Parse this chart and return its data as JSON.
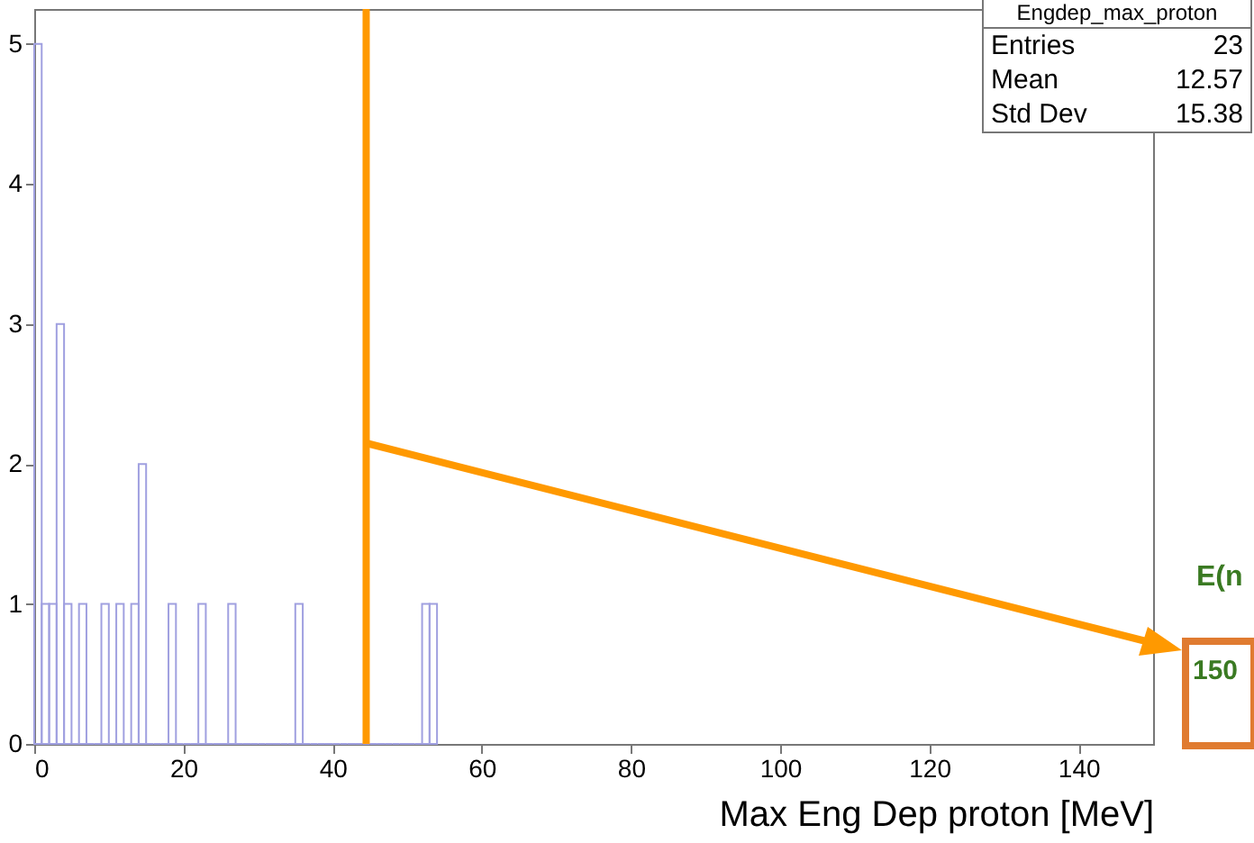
{
  "chart_data": {
    "type": "histogram",
    "xlabel": "Max Eng Dep proton [MeV]",
    "bins": [
      0,
      1,
      2,
      3,
      4,
      5,
      6,
      7,
      8,
      9,
      10,
      11,
      12,
      13,
      14,
      15,
      16,
      17,
      18,
      19,
      20,
      21,
      22,
      23,
      24,
      25,
      26,
      27,
      28,
      29,
      30,
      31,
      32,
      33,
      34,
      35,
      36,
      37,
      38,
      39,
      40,
      41,
      42,
      43,
      44,
      45,
      46,
      47,
      48,
      49,
      50,
      51,
      52,
      53,
      54
    ],
    "values": [
      5,
      1,
      1,
      3,
      1,
      0,
      1,
      0,
      0,
      1,
      0,
      1,
      0,
      1,
      2,
      0,
      0,
      0,
      1,
      0,
      0,
      0,
      1,
      0,
      0,
      0,
      1,
      0,
      0,
      0,
      0,
      0,
      0,
      0,
      0,
      1,
      0,
      0,
      0,
      0,
      0,
      0,
      0,
      0,
      0,
      0,
      0,
      0,
      0,
      0,
      0,
      0,
      1,
      1
    ],
    "color": "#a0a0e0",
    "xlim": [
      0,
      150
    ],
    "xticks": [
      0,
      20,
      40,
      60,
      80,
      100,
      120,
      140
    ],
    "ylim": [
      0,
      5.25
    ],
    "yticks": [
      0,
      1,
      2,
      3,
      4,
      5
    ],
    "ref_lines": [
      {
        "axis": "x",
        "value": 44.5,
        "color": "#ff9900"
      }
    ],
    "annotations": [
      "Engdep_max_proton",
      "Entries",
      "23",
      "Mean",
      "12.57",
      "Std Dev",
      "15.38",
      "E(n",
      "150"
    ]
  }
}
